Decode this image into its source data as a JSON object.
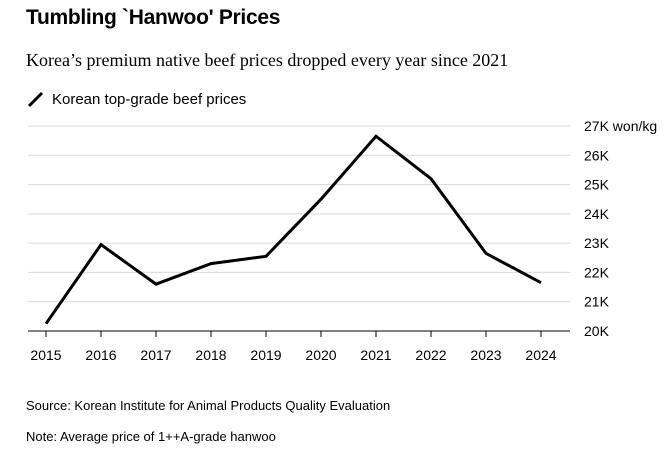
{
  "header": {
    "title": "Tumbling `Hanwoo' Prices",
    "subtitle": "Korea’s premium native beef prices dropped every year since 2021"
  },
  "legend": {
    "label": "Korean top-grade beef prices",
    "icon": "line-legend-icon"
  },
  "footer": {
    "source": "Source: Korean Institute for Animal Products Quality Evaluation",
    "note": "Note: Average price of 1++A-grade hanwoo"
  },
  "colors": {
    "line": "#000000",
    "grid": "#d9d9d9",
    "text": "#000000",
    "background": "#ffffff"
  },
  "chart_data": {
    "type": "line",
    "title": "Tumbling `Hanwoo' Prices",
    "subtitle": "Korea’s premium native beef prices dropped every year since 2021",
    "x": [
      2015,
      2016,
      2017,
      2018,
      2019,
      2020,
      2021,
      2022,
      2023,
      2024
    ],
    "series": [
      {
        "name": "Korean top-grade beef prices",
        "values": [
          20250,
          22950,
          21600,
          22300,
          22550,
          24500,
          26650,
          25200,
          22650,
          21650
        ]
      }
    ],
    "xlabel": "",
    "ylabel": "won/kg",
    "ylim": [
      20000,
      27000
    ],
    "yticks": [
      20000,
      21000,
      22000,
      23000,
      24000,
      25000,
      26000,
      27000
    ],
    "ytick_labels": [
      "20K",
      "21K",
      "22K",
      "23K",
      "24K",
      "25K",
      "26K",
      "27K won/kg"
    ],
    "xtick_labels": [
      "2015",
      "2016",
      "2017",
      "2018",
      "2019",
      "2020",
      "2021",
      "2022",
      "2023",
      "2024"
    ],
    "grid": true,
    "y_axis_side": "right",
    "legend_position": "top-left"
  }
}
